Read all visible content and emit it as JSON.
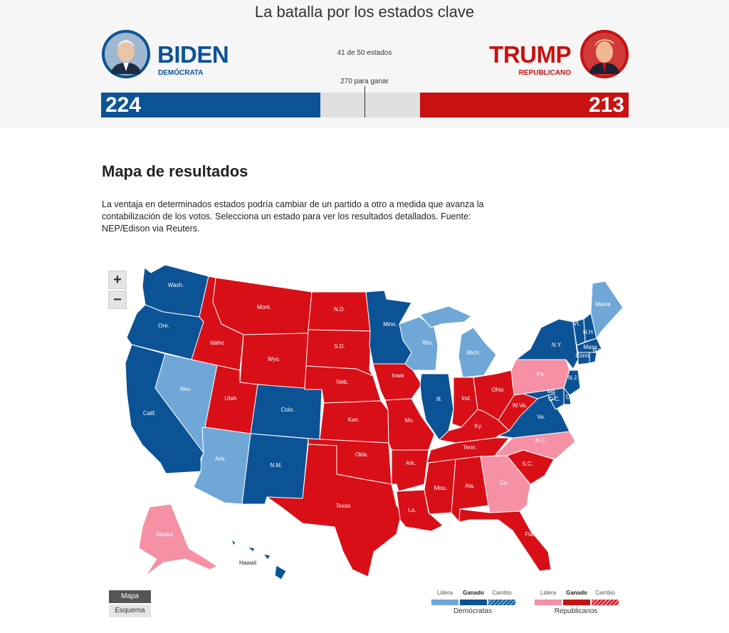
{
  "header": {
    "title": "La batalla por los estados clave",
    "states_count": "41 de 50 estados",
    "to_win": "270 para ganar"
  },
  "biden": {
    "name": "BIDEN",
    "party": "DEMÓCRATA",
    "votes": "224",
    "color": "#0c5396",
    "vote_share": 0.4156
  },
  "trump": {
    "name": "TRUMP",
    "party": "REPUBLICANO",
    "votes": "213",
    "color": "#c91111",
    "vote_share": 0.3952
  },
  "section": {
    "title": "Mapa de resultados",
    "description": "La ventaja en determinados estados podría cambiar de un partido a otro a medida que avanza la contabilización de los votos. Selecciona un estado para ver los resultados detallados. Fuente: NEP/Edison via Reuters."
  },
  "zoom": {
    "in": "+",
    "out": "−"
  },
  "colors": {
    "dem_won": "#0c5396",
    "dem_lead": "#6fa7d6",
    "rep_won": "#d80f17",
    "rep_lead": "#f590a5",
    "border": "#ffffff"
  },
  "states": {
    "wa": {
      "label": "Wash.",
      "status": "dem_won"
    },
    "or": {
      "label": "Ore.",
      "status": "dem_won"
    },
    "ca": {
      "label": "Calif.",
      "status": "dem_won"
    },
    "nv": {
      "label": "Nev.",
      "status": "dem_lead"
    },
    "id": {
      "label": "Idaho",
      "status": "rep_won"
    },
    "mt": {
      "label": "Mont.",
      "status": "rep_won"
    },
    "wy": {
      "label": "Wyo.",
      "status": "rep_won"
    },
    "ut": {
      "label": "Utah",
      "status": "rep_won"
    },
    "az": {
      "label": "Ariz.",
      "status": "dem_lead"
    },
    "co": {
      "label": "Colo.",
      "status": "dem_won"
    },
    "nm": {
      "label": "N.M.",
      "status": "dem_won"
    },
    "nd": {
      "label": "N.D.",
      "status": "rep_won"
    },
    "sd": {
      "label": "S.D.",
      "status": "rep_won"
    },
    "ne": {
      "label": "Neb.",
      "status": "rep_won"
    },
    "ks": {
      "label": "Kan.",
      "status": "rep_won"
    },
    "ok": {
      "label": "Okla.",
      "status": "rep_won"
    },
    "tx": {
      "label": "Texas",
      "status": "rep_won"
    },
    "mn": {
      "label": "Minn.",
      "status": "dem_won"
    },
    "ia": {
      "label": "Iowa",
      "status": "rep_won"
    },
    "mo": {
      "label": "Mo.",
      "status": "rep_won"
    },
    "ar": {
      "label": "Ark.",
      "status": "rep_won"
    },
    "la": {
      "label": "La.",
      "status": "rep_won"
    },
    "wi": {
      "label": "Wis.",
      "status": "dem_lead"
    },
    "mi": {
      "label": "Mich.",
      "status": "dem_lead"
    },
    "il": {
      "label": "Ill.",
      "status": "dem_won"
    },
    "in": {
      "label": "Ind.",
      "status": "rep_won"
    },
    "oh": {
      "label": "Ohio",
      "status": "rep_won"
    },
    "ky": {
      "label": "Ky.",
      "status": "rep_won"
    },
    "tn": {
      "label": "Tenn.",
      "status": "rep_won"
    },
    "ms": {
      "label": "Miss.",
      "status": "rep_won"
    },
    "al": {
      "label": "Ala.",
      "status": "rep_won"
    },
    "ga": {
      "label": "Ga.",
      "status": "rep_lead"
    },
    "fl": {
      "label": "Fla.",
      "status": "rep_won"
    },
    "sc": {
      "label": "S.C.",
      "status": "rep_won"
    },
    "nc": {
      "label": "N.C.",
      "status": "rep_lead"
    },
    "va": {
      "label": "Va.",
      "status": "dem_won"
    },
    "wv": {
      "label": "W.Va.",
      "status": "rep_won"
    },
    "pa": {
      "label": "Pa.",
      "status": "rep_lead"
    },
    "ny": {
      "label": "N.Y.",
      "status": "dem_won"
    },
    "vt": {
      "label": "Vt.",
      "status": "dem_won"
    },
    "nh": {
      "label": "N.H.",
      "status": "dem_won"
    },
    "me": {
      "label": "Maine",
      "status": "dem_lead"
    },
    "ma": {
      "label": "Mass.",
      "status": "dem_won"
    },
    "ct": {
      "label": "Conn.",
      "status": "dem_won"
    },
    "ri": {
      "label": "R.I.",
      "status": "dem_won"
    },
    "nj": {
      "label": "N.J.",
      "status": "dem_won"
    },
    "de": {
      "label": "Del.",
      "status": "dem_won"
    },
    "md": {
      "label": "Md.",
      "status": "dem_won"
    },
    "dc": {
      "label": "D.C.",
      "status": "dem_won"
    },
    "ak": {
      "label": "Alaska",
      "status": "rep_lead"
    },
    "hi": {
      "label": "Hawaii",
      "status": "dem_won"
    }
  },
  "view": {
    "map": "Mapa",
    "schema": "Esquema"
  },
  "legend": {
    "lead": "Lidera",
    "won": "Ganado",
    "flip": "Cambio",
    "dem": "Demócratas",
    "rep": "Republicanos"
  }
}
